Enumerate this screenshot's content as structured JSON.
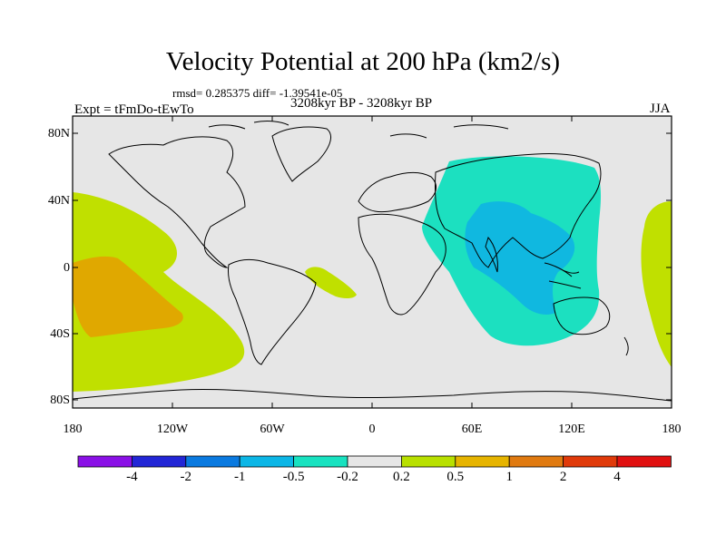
{
  "title": "Velocity Potential at 200 hPa (km2/s)",
  "stats": "rmsd= 0.285375 diff= -1.39541e-05",
  "experiment": "Expt = tFmDo-tEwTo",
  "period": "3208kyr BP - 3208kyr BP",
  "season": "JJA",
  "lat_labels": [
    "80N",
    "40N",
    "0",
    "40S",
    "80S"
  ],
  "lon_labels": [
    "180",
    "120W",
    "60W",
    "0",
    "60E",
    "120E",
    "180"
  ],
  "colorbar": {
    "labels": [
      "-4",
      "-2",
      "-1",
      "-0.5",
      "-0.2",
      "0.2",
      "0.5",
      "1",
      "2",
      "4"
    ],
    "colors": [
      "#8a10e6",
      "#2226d6",
      "#0a7ae0",
      "#0cb6e6",
      "#18e2c0",
      "#e6e6e6",
      "#b8e000",
      "#e6b400",
      "#e07a10",
      "#e03a0a",
      "#e01010"
    ]
  },
  "colors": {
    "ocean_bg": "#e6e6e6",
    "positive_light": "#c0e000",
    "positive_mid": "#e0a800",
    "negative_light": "#1ce0c0",
    "negative_mid": "#10b8e0"
  }
}
